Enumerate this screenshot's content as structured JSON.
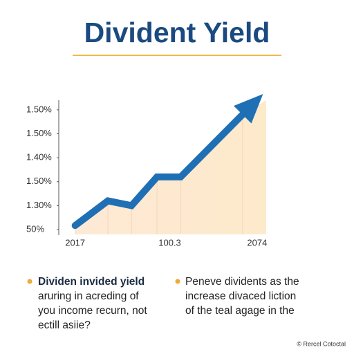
{
  "chart_data": {
    "type": "line",
    "title": "Divident Yield",
    "xlim": [
      -0.09,
      1.05
    ],
    "xticks": [
      {
        "value": 0,
        "label": "2017"
      },
      {
        "value": 0.52,
        "label": "100.3"
      },
      {
        "value": 1,
        "label": "2074"
      }
    ],
    "ylim": [
      -0.2,
      5.4
    ],
    "yticks": [
      {
        "value": 0,
        "label": "50%"
      },
      {
        "value": 1,
        "label": "1.30%"
      },
      {
        "value": 2,
        "label": "1.50%"
      },
      {
        "value": 3,
        "label": "1.40%"
      },
      {
        "value": 4,
        "label": "1.50%"
      },
      {
        "value": 5,
        "label": "1.50%"
      }
    ],
    "series": [
      {
        "color": "#1f6fb5",
        "x": [
          0,
          0.18,
          0.31,
          0.45,
          0.58,
          0.92
        ],
        "values": [
          0.17,
          1.2,
          1.0,
          2.2,
          2.2,
          4.8
        ]
      }
    ],
    "area_color": "#fde2c2"
  },
  "notes": {
    "left": [
      "Dividen invided yield",
      "aruring in acreding of",
      "you income recurn, not",
      "ectill asiie?"
    ],
    "right": [
      "Peneve dividents as the",
      "increase divaced liction",
      "of the teal agage in the"
    ]
  },
  "footer": "© Rercel Cotoctal"
}
